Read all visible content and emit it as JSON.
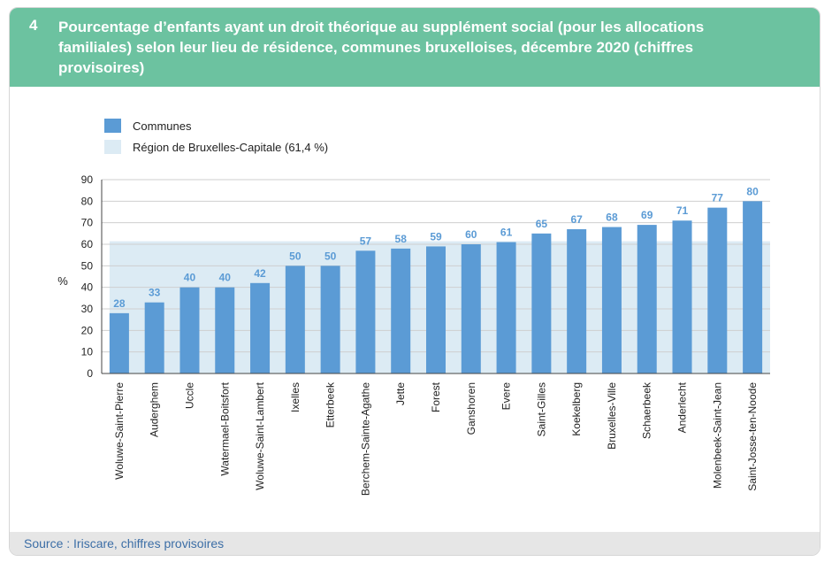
{
  "figure": {
    "number": "4",
    "title": "Pourcentage d’enfants ayant un droit théorique au supplément social (pour les allocations familiales) selon leur lieu de résidence, communes bruxelloises, décembre 2020 (chiffres provisoires)"
  },
  "source": "Source : Iriscare, chiffres provisoires",
  "colors": {
    "header_bg": "#6cc2a0",
    "bar": "#5b9bd5",
    "region_band": "#dcebf4",
    "value_label": "#5b9bd5",
    "grid": "#cfcfcf"
  },
  "chart_data": {
    "type": "bar",
    "ylabel": "%",
    "ylim": [
      0,
      90
    ],
    "yticks": [
      0,
      10,
      20,
      30,
      40,
      50,
      60,
      70,
      80,
      90
    ],
    "grid": true,
    "legend": {
      "position": "top-left",
      "bar_label": "Communes",
      "region_label": "Région de Bruxelles-Capitale (61,4 %)"
    },
    "reference": {
      "name": "Région de Bruxelles-Capitale",
      "value": 61.4
    },
    "categories": [
      "Woluwe-Saint-Pierre",
      "Auderghem",
      "Uccle",
      "Watermael-Boitsfort",
      "Woluwe-Saint-Lambert",
      "Ixelles",
      "Etterbeek",
      "Berchem-Sainte-Agathe",
      "Jette",
      "Forest",
      "Ganshoren",
      "Evere",
      "Saint-Gilles",
      "Koekelberg",
      "Bruxelles-Ville",
      "Schaerbeek",
      "Anderlecht",
      "Molenbeek-Saint-Jean",
      "Saint-Josse-ten-Noode"
    ],
    "values": [
      28,
      33,
      40,
      40,
      42,
      50,
      50,
      57,
      58,
      59,
      60,
      61,
      65,
      67,
      68,
      69,
      71,
      77,
      80
    ]
  }
}
